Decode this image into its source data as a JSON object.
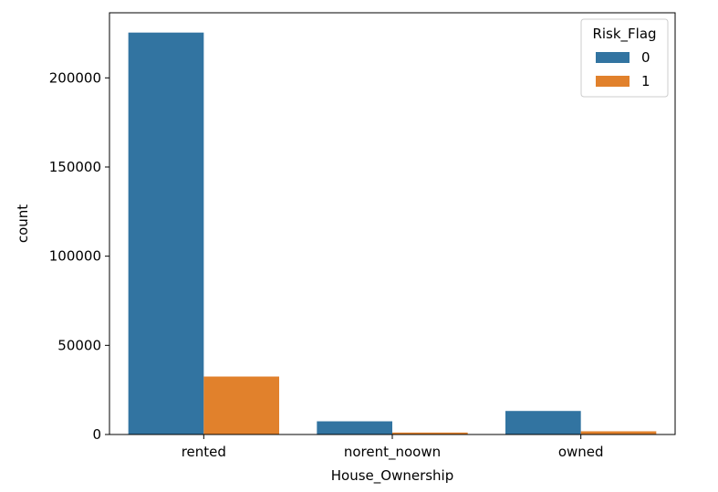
{
  "chart_data": {
    "type": "bar",
    "categories": [
      "rented",
      "norent_noown",
      "owned"
    ],
    "series": [
      {
        "name": "0",
        "values": [
          225400,
          7400,
          13200
        ]
      },
      {
        "name": "1",
        "values": [
          32500,
          1100,
          1800
        ]
      }
    ],
    "colors": [
      "#3274a1",
      "#e1812c"
    ],
    "xlabel": "House_Ownership",
    "ylabel": "count",
    "ylim": [
      0,
      236500
    ],
    "yticks": [
      0,
      50000,
      100000,
      150000,
      200000
    ],
    "ytick_labels": [
      "0",
      "50000",
      "100000",
      "150000",
      "200000"
    ],
    "legend": {
      "title": "Risk_Flag",
      "position": "top-right"
    },
    "grid": false
  }
}
